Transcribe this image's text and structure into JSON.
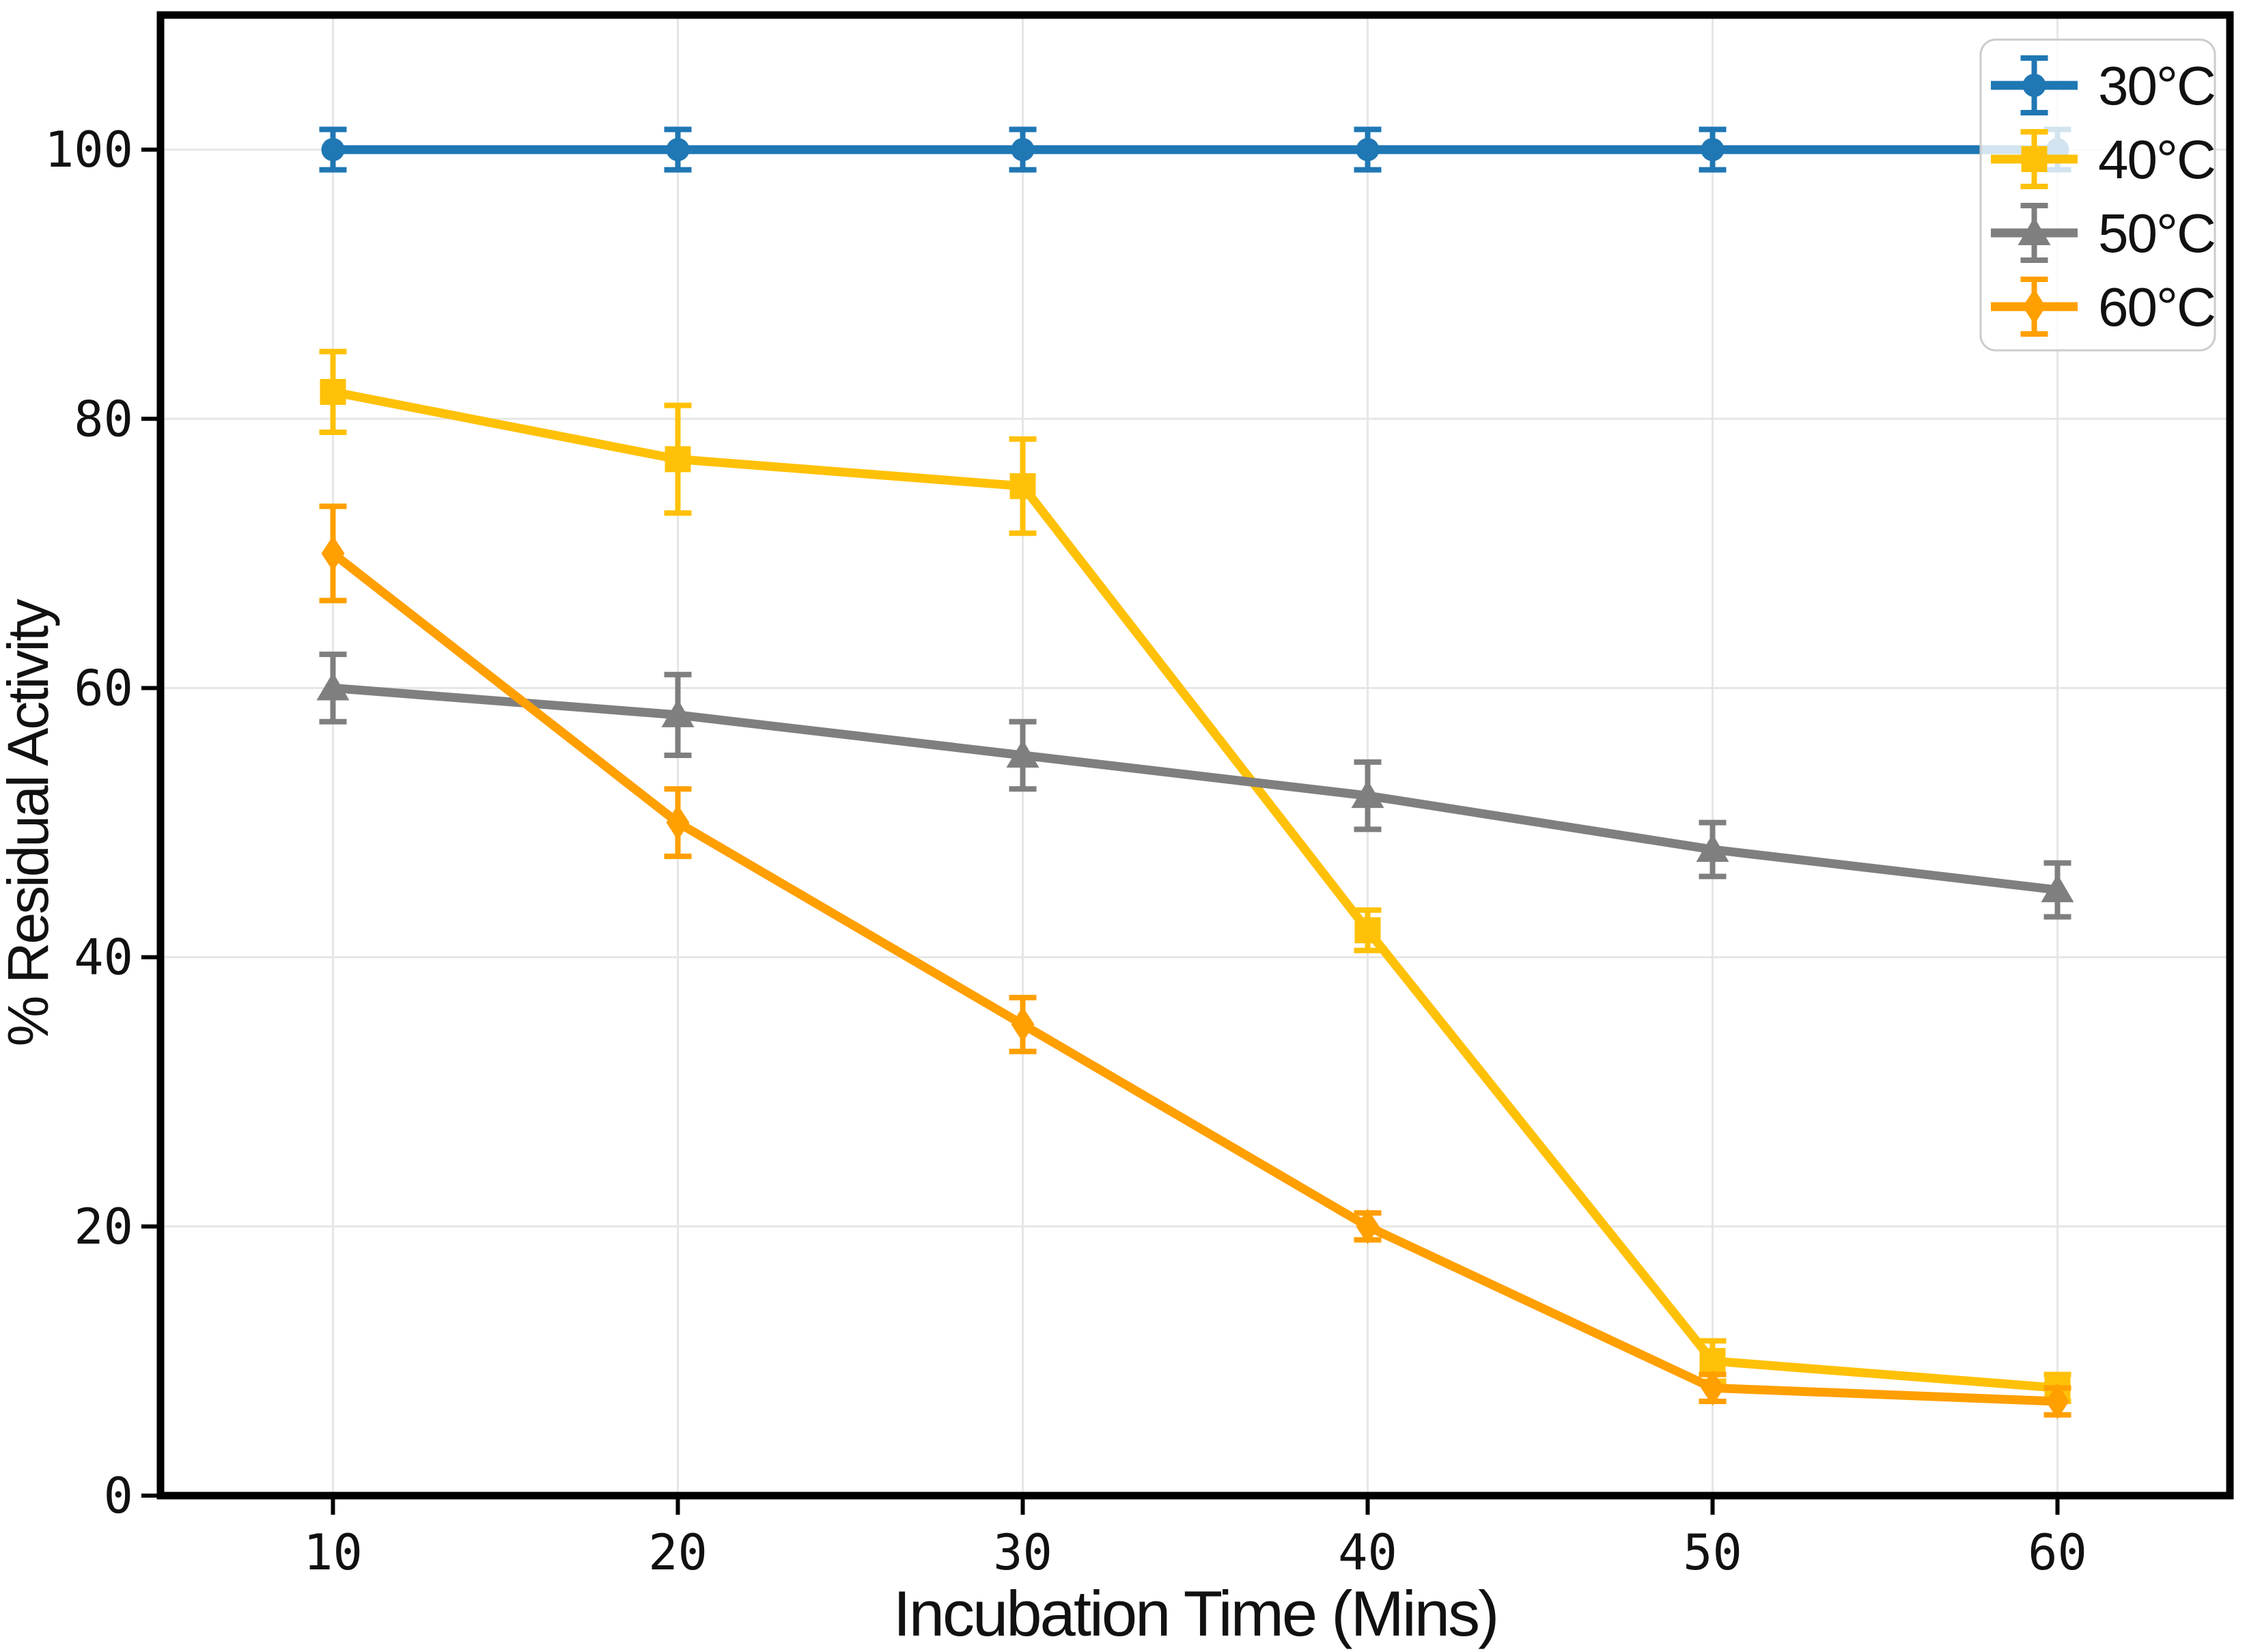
{
  "chart_data": {
    "type": "line",
    "title": "",
    "xlabel": "Incubation Time (Mins)",
    "ylabel": "% Residual Activity",
    "x": [
      10,
      20,
      30,
      40,
      50,
      60
    ],
    "xtick_labels": [
      "10",
      "20",
      "30",
      "40",
      "50",
      "60"
    ],
    "ytick_values": [
      0,
      20,
      40,
      60,
      80,
      100
    ],
    "ytick_labels": [
      "0",
      "20",
      "40",
      "60",
      "80",
      "100"
    ],
    "xlim": [
      5,
      65
    ],
    "ylim": [
      0,
      110
    ],
    "grid": true,
    "legend_position": "upper right",
    "colors": {
      "background": "#ffffff",
      "grid": "#e6e6e6",
      "spine": "#000000",
      "legend_border": "#cccccc",
      "text": "#111111"
    },
    "series": [
      {
        "name": "30°C",
        "color": "#1f77b4",
        "marker": "circle",
        "values": [
          100,
          100,
          100,
          100,
          100,
          100
        ],
        "errors": [
          1.5,
          1.5,
          1.5,
          1.5,
          1.5,
          1.5
        ]
      },
      {
        "name": "40°C",
        "color": "#ffc107",
        "marker": "square",
        "values": [
          82,
          77,
          75,
          42,
          10,
          8
        ],
        "errors": [
          3,
          4,
          3.5,
          1.5,
          1.5,
          1
        ]
      },
      {
        "name": "50°C",
        "color": "#7f7f7f",
        "marker": "triangle",
        "values": [
          60,
          58,
          55,
          52,
          48,
          45
        ],
        "errors": [
          2.5,
          3,
          2.5,
          2.5,
          2,
          2
        ]
      },
      {
        "name": "60°C",
        "color": "#ff9f00",
        "marker": "diamond",
        "values": [
          70,
          50,
          35,
          20,
          8,
          7
        ],
        "errors": [
          3.5,
          2.5,
          2,
          1,
          1,
          1
        ]
      }
    ]
  }
}
